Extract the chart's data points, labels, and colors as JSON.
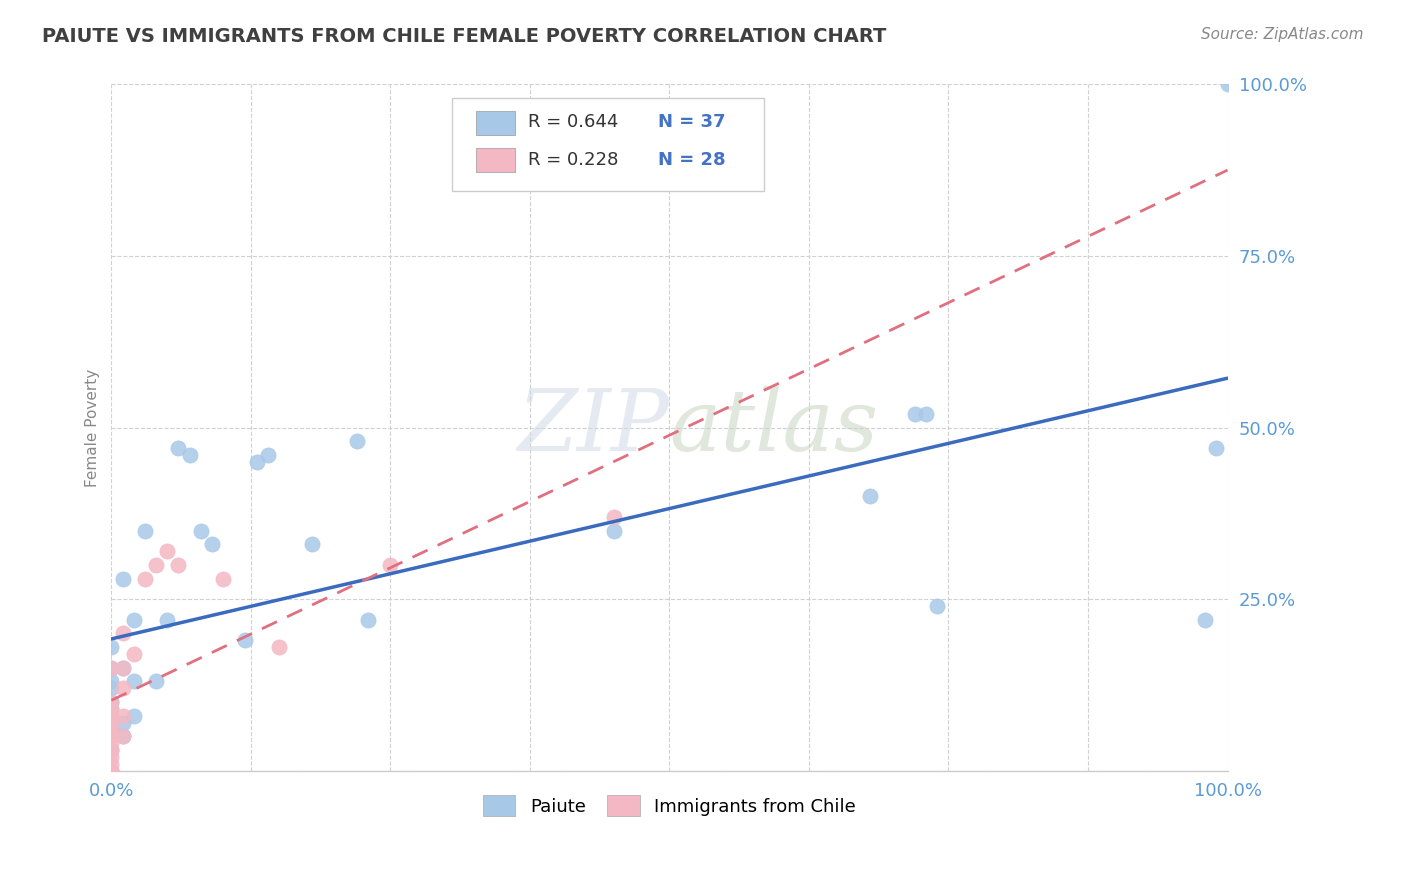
{
  "title": "PAIUTE VS IMMIGRANTS FROM CHILE FEMALE POVERTY CORRELATION CHART",
  "source": "Source: ZipAtlas.com",
  "ylabel": "Female Poverty",
  "xlim": [
    0.0,
    1.0
  ],
  "ylim": [
    0.0,
    1.0
  ],
  "xticks": [
    0.0,
    0.125,
    0.25,
    0.375,
    0.5,
    0.625,
    0.75,
    0.875,
    1.0
  ],
  "yticks": [
    0.0,
    0.25,
    0.5,
    0.75,
    1.0
  ],
  "ytick_labels": [
    "",
    "25.0%",
    "50.0%",
    "75.0%",
    "100.0%"
  ],
  "watermark": "ZIPatlas",
  "paiute_color": "#a8c8e8",
  "paiute_line_color": "#3a6bbf",
  "chile_color": "#f4b8c4",
  "chile_line_color": "#e07080",
  "paiute_R": 0.644,
  "paiute_N": 37,
  "chile_R": 0.228,
  "chile_N": 28,
  "paiute_x": [
    0.0,
    0.0,
    0.0,
    0.0,
    0.0,
    0.0,
    0.0,
    0.0,
    0.0,
    0.01,
    0.01,
    0.01,
    0.01,
    0.02,
    0.02,
    0.02,
    0.03,
    0.04,
    0.05,
    0.06,
    0.07,
    0.08,
    0.09,
    0.12,
    0.13,
    0.14,
    0.18,
    0.22,
    0.23,
    0.45,
    0.68,
    0.72,
    0.73,
    0.74,
    0.98,
    0.99,
    1.0
  ],
  "paiute_y": [
    0.03,
    0.06,
    0.08,
    0.09,
    0.1,
    0.12,
    0.13,
    0.15,
    0.18,
    0.05,
    0.07,
    0.15,
    0.28,
    0.08,
    0.13,
    0.22,
    0.35,
    0.13,
    0.22,
    0.47,
    0.46,
    0.35,
    0.33,
    0.19,
    0.45,
    0.46,
    0.33,
    0.48,
    0.22,
    0.35,
    0.4,
    0.52,
    0.52,
    0.24,
    0.22,
    0.47,
    1.0
  ],
  "chile_x": [
    0.0,
    0.0,
    0.0,
    0.0,
    0.0,
    0.0,
    0.0,
    0.0,
    0.0,
    0.0,
    0.0,
    0.0,
    0.0,
    0.0,
    0.01,
    0.01,
    0.01,
    0.01,
    0.01,
    0.02,
    0.03,
    0.04,
    0.05,
    0.06,
    0.1,
    0.15,
    0.25,
    0.45
  ],
  "chile_y": [
    0.0,
    0.0,
    0.0,
    0.01,
    0.02,
    0.03,
    0.04,
    0.05,
    0.06,
    0.07,
    0.08,
    0.09,
    0.1,
    0.15,
    0.05,
    0.08,
    0.12,
    0.15,
    0.2,
    0.17,
    0.28,
    0.3,
    0.32,
    0.3,
    0.28,
    0.18,
    0.3,
    0.37
  ],
  "bg_color": "#ffffff",
  "grid_color": "#cccccc",
  "title_color": "#404040",
  "axis_color": "#5b9bd5",
  "legend_box_color": "#e8e8e8",
  "legend_R_color": "#333333",
  "legend_N_color": "#4472c4"
}
